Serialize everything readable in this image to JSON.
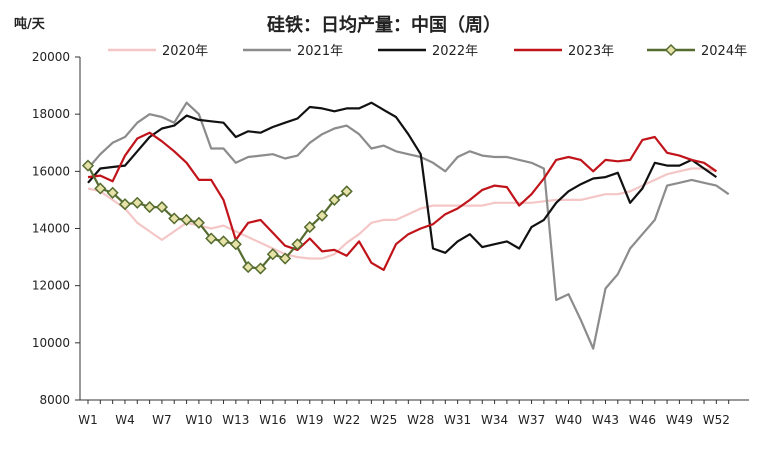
{
  "chart_data": {
    "type": "line",
    "title": "硅铁：日均产量：中国（周）",
    "ylabel": "吨/天",
    "ylim": [
      8000,
      20000
    ],
    "yticks": [
      8000,
      10000,
      12000,
      14000,
      16000,
      18000,
      20000
    ],
    "xlim": [
      1,
      54
    ],
    "xtick_labels": [
      {
        "week": 1,
        "label": "W1"
      },
      {
        "week": 4,
        "label": "W4"
      },
      {
        "week": 7,
        "label": "W7"
      },
      {
        "week": 10,
        "label": "W10"
      },
      {
        "week": 13,
        "label": "W13"
      },
      {
        "week": 16,
        "label": "W16"
      },
      {
        "week": 19,
        "label": "W19"
      },
      {
        "week": 22,
        "label": "W22"
      },
      {
        "week": 25,
        "label": "W25"
      },
      {
        "week": 28,
        "label": "W28"
      },
      {
        "week": 31,
        "label": "W31"
      },
      {
        "week": 34,
        "label": "W34"
      },
      {
        "week": 37,
        "label": "W37"
      },
      {
        "week": 40,
        "label": "W40"
      },
      {
        "week": 43,
        "label": "W43"
      },
      {
        "week": 46,
        "label": "W46"
      },
      {
        "week": 49,
        "label": "W49"
      },
      {
        "week": 52,
        "label": "W52"
      }
    ],
    "legend_position": "top",
    "series": [
      {
        "name": "2020年",
        "color": "#f4c6c6",
        "marker": "none",
        "x": [
          1,
          2,
          3,
          4,
          5,
          6,
          7,
          8,
          9,
          10,
          11,
          12,
          13,
          14,
          15,
          16,
          17,
          18,
          19,
          20,
          21,
          22,
          23,
          24,
          25,
          26,
          27,
          28,
          29,
          30,
          31,
          32,
          33,
          34,
          35,
          36,
          37,
          38,
          39,
          40,
          41,
          42,
          43,
          44,
          45,
          46,
          47,
          48,
          49,
          50,
          51,
          52
        ],
        "y": [
          15400,
          15300,
          15000,
          14700,
          14200,
          13900,
          13600,
          13900,
          14200,
          14100,
          14000,
          14100,
          13900,
          13700,
          13500,
          13300,
          13100,
          13000,
          12950,
          12950,
          13100,
          13500,
          13800,
          14200,
          14300,
          14300,
          14500,
          14700,
          14800,
          14800,
          14800,
          14800,
          14800,
          14900,
          14900,
          14900,
          14900,
          14950,
          15000,
          15000,
          15000,
          15100,
          15200,
          15200,
          15300,
          15500,
          15700,
          15900,
          16000,
          16100,
          16100,
          16000
        ]
      },
      {
        "name": "2021年",
        "color": "#8c8c8c",
        "marker": "none",
        "x": [
          1,
          2,
          3,
          4,
          5,
          6,
          7,
          8,
          9,
          10,
          11,
          12,
          13,
          14,
          15,
          16,
          17,
          18,
          19,
          20,
          21,
          22,
          23,
          24,
          25,
          26,
          27,
          28,
          29,
          30,
          31,
          32,
          33,
          34,
          35,
          36,
          37,
          38,
          39,
          40,
          41,
          42,
          43,
          44,
          45,
          46,
          47,
          48,
          49,
          50,
          51,
          52,
          53
        ],
        "y": [
          16100,
          16600,
          17000,
          17200,
          17700,
          18000,
          17900,
          17700,
          18400,
          18000,
          16800,
          16800,
          16300,
          16500,
          16550,
          16600,
          16450,
          16550,
          17000,
          17300,
          17500,
          17600,
          17300,
          16800,
          16900,
          16700,
          16600,
          16500,
          16300,
          16000,
          16500,
          16700,
          16550,
          16500,
          16500,
          16400,
          16300,
          16100,
          11500,
          11700,
          10800,
          9800,
          11900,
          12400,
          13300,
          13800,
          14300,
          15500,
          15600,
          15700,
          15600,
          15500,
          15200
        ]
      },
      {
        "name": "2022年",
        "color": "#111111",
        "marker": "none",
        "x": [
          1,
          2,
          3,
          4,
          5,
          6,
          7,
          8,
          9,
          10,
          11,
          12,
          13,
          14,
          15,
          16,
          17,
          18,
          19,
          20,
          21,
          22,
          23,
          24,
          25,
          26,
          27,
          28,
          29,
          30,
          31,
          32,
          33,
          34,
          35,
          36,
          37,
          38,
          39,
          40,
          41,
          42,
          43,
          44,
          45,
          46,
          47,
          48,
          49,
          50,
          51,
          52
        ],
        "y": [
          15600,
          16100,
          16150,
          16200,
          16700,
          17200,
          17500,
          17600,
          17950,
          17800,
          17750,
          17700,
          17200,
          17400,
          17350,
          17550,
          17700,
          17850,
          18250,
          18200,
          18100,
          18200,
          18200,
          18400,
          18150,
          17900,
          17300,
          16600,
          13300,
          13150,
          13550,
          13800,
          13350,
          13450,
          13550,
          13300,
          14050,
          14300,
          14900,
          15300,
          15550,
          15750,
          15800,
          15950,
          14900,
          15400,
          16300,
          16200,
          16200,
          16400,
          16100,
          15800
        ]
      },
      {
        "name": "2023年",
        "color": "#c0141a",
        "marker": "none",
        "x": [
          1,
          2,
          3,
          4,
          5,
          6,
          7,
          8,
          9,
          10,
          11,
          12,
          13,
          14,
          15,
          16,
          17,
          18,
          19,
          20,
          21,
          22,
          23,
          24,
          25,
          26,
          27,
          28,
          29,
          30,
          31,
          32,
          33,
          34,
          35,
          36,
          37,
          38,
          39,
          40,
          41,
          42,
          43,
          44,
          45,
          46,
          47,
          48,
          49,
          50,
          51,
          52
        ],
        "y": [
          15800,
          15850,
          15650,
          16550,
          17150,
          17350,
          17050,
          16700,
          16300,
          15700,
          15700,
          15000,
          13600,
          14200,
          14300,
          13850,
          13400,
          13250,
          13650,
          13200,
          13250,
          13050,
          13550,
          12800,
          12550,
          13450,
          13800,
          14000,
          14150,
          14500,
          14700,
          15000,
          15350,
          15500,
          15450,
          14800,
          15200,
          15750,
          16400,
          16500,
          16400,
          16000,
          16400,
          16350,
          16400,
          17100,
          17200,
          16650,
          16550,
          16400,
          16300,
          16000
        ]
      },
      {
        "name": "2024年",
        "color": "#556b2f",
        "marker": "diamond",
        "marker_fill": "#e6e2a8",
        "x": [
          1,
          2,
          3,
          4,
          5,
          6,
          7,
          8,
          9,
          10,
          11,
          12,
          13,
          14,
          15,
          16,
          17,
          18,
          19,
          20,
          21,
          22
        ],
        "y": [
          16200,
          15400,
          15250,
          14850,
          14900,
          14750,
          14750,
          14350,
          14300,
          14200,
          13650,
          13550,
          13450,
          12650,
          12600,
          13100,
          12950,
          13450,
          14050,
          14450,
          15000,
          15300
        ]
      }
    ]
  }
}
